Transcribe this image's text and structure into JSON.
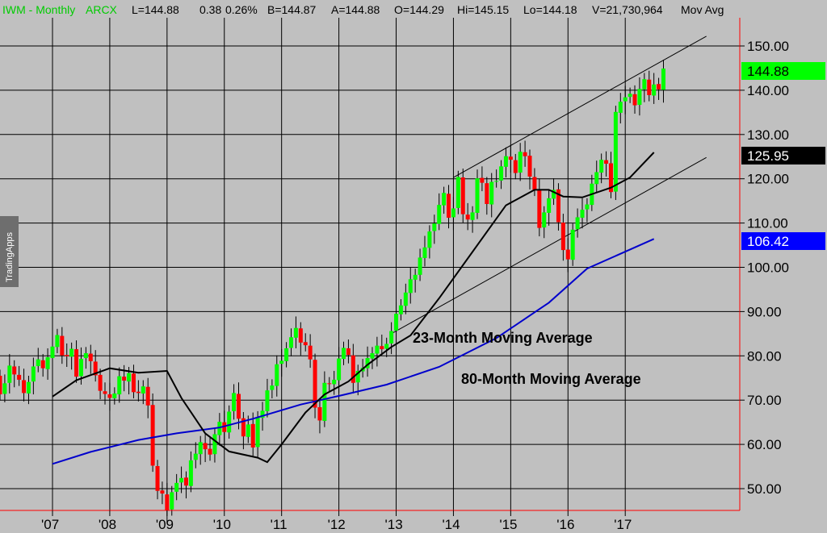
{
  "header": {
    "symbol": "IWM - Monthly",
    "exchange": "ARCX",
    "last": "L=144.88",
    "change": "0.38",
    "change_pct": "0.26%",
    "bid": "B=144.87",
    "ask": "A=144.88",
    "open": "O=144.29",
    "high": "Hi=145.15",
    "low": "Lo=144.18",
    "volume": "V=21,730,964",
    "study": "Mov Avg"
  },
  "watermark": "TradingApps",
  "colors": {
    "background": "#c0c0c0",
    "up": "#00ff00",
    "down": "#ff0000",
    "ma23": "#000000",
    "ma80": "#0000cc",
    "last_tag": "#00ff00",
    "grid": "#000000"
  },
  "chart_data": {
    "type": "candlestick",
    "symbol": "IWM",
    "period": "Monthly",
    "ylim": [
      45,
      156
    ],
    "y_ticks": [
      "150.00",
      "140.00",
      "130.00",
      "120.00",
      "110.00",
      "100.00",
      "90.00",
      "80.00",
      "70.00",
      "60.00",
      "50.00"
    ],
    "x_ticks": [
      "'07",
      "'08",
      "'09",
      "'10",
      "'11",
      "'12",
      "'13",
      "'14",
      "'15",
      "'16",
      "'17"
    ],
    "candles": [
      [
        75.5,
        71.3
      ],
      [
        71.4,
        73.8
      ],
      [
        73.9,
        77.8
      ],
      [
        77.6,
        75.8
      ],
      [
        75.7,
        74.6
      ],
      [
        74.5,
        71.6
      ],
      [
        71.5,
        74.1
      ],
      [
        74.2,
        77.6
      ],
      [
        77.7,
        79.2
      ],
      [
        79.0,
        77.2
      ],
      [
        77.0,
        79.7
      ],
      [
        79.5,
        82.1
      ],
      [
        82.0,
        84.7
      ],
      [
        84.5,
        80.1
      ],
      [
        80.2,
        79.9
      ],
      [
        79.8,
        81.6
      ],
      [
        81.5,
        75.3
      ],
      [
        75.4,
        79.3
      ],
      [
        79.5,
        80.6
      ],
      [
        80.5,
        78.8
      ],
      [
        78.7,
        75.6
      ],
      [
        75.7,
        72.1
      ],
      [
        72.0,
        71.4
      ],
      [
        71.3,
        70.5
      ],
      [
        70.4,
        71.5
      ],
      [
        71.3,
        75.4
      ],
      [
        75.3,
        74.4
      ],
      [
        74.2,
        76.1
      ],
      [
        76.0,
        71.8
      ],
      [
        71.9,
        71.6
      ],
      [
        71.5,
        73.1
      ],
      [
        73.0,
        68.8
      ],
      [
        68.9,
        55.2
      ],
      [
        55.1,
        49.5
      ],
      [
        49.6,
        48.9
      ],
      [
        48.7,
        45.1
      ],
      [
        45.3,
        49.2
      ],
      [
        49.3,
        51.3
      ],
      [
        51.4,
        52.4
      ],
      [
        52.5,
        50.7
      ],
      [
        50.6,
        56.4
      ],
      [
        56.5,
        57.9
      ],
      [
        57.8,
        60.5
      ],
      [
        60.3,
        58.9
      ],
      [
        59.0,
        57.7
      ],
      [
        57.8,
        62.3
      ],
      [
        62.1,
        65.1
      ],
      [
        65.0,
        62.8
      ],
      [
        62.7,
        67.4
      ],
      [
        67.5,
        71.6
      ],
      [
        71.4,
        65.8
      ],
      [
        65.9,
        61.8
      ],
      [
        61.7,
        64.5
      ],
      [
        64.6,
        59.3
      ],
      [
        59.4,
        66.1
      ],
      [
        66.0,
        67.6
      ],
      [
        67.5,
        72.2
      ],
      [
        72.3,
        73.3
      ],
      [
        73.2,
        78.1
      ],
      [
        78.2,
        78.9
      ],
      [
        78.8,
        81.7
      ],
      [
        81.8,
        84.2
      ],
      [
        84.1,
        86.3
      ],
      [
        86.2,
        83.0
      ],
      [
        83.1,
        82.4
      ],
      [
        82.3,
        79.2
      ],
      [
        79.1,
        68.3
      ],
      [
        68.4,
        65.4
      ],
      [
        65.3,
        73.9
      ],
      [
        73.8,
        73.7
      ],
      [
        73.6,
        74.6
      ],
      [
        74.5,
        79.4
      ],
      [
        79.3,
        81.8
      ],
      [
        81.7,
        80.2
      ],
      [
        80.1,
        73.9
      ],
      [
        74.0,
        76.6
      ],
      [
        76.5,
        77.3
      ],
      [
        77.2,
        79.5
      ],
      [
        79.4,
        80.6
      ],
      [
        80.5,
        82.3
      ],
      [
        82.2,
        81.5
      ],
      [
        81.6,
        82.7
      ],
      [
        82.8,
        85.6
      ],
      [
        85.7,
        89.5
      ],
      [
        89.4,
        91.4
      ],
      [
        91.3,
        94.3
      ],
      [
        94.2,
        97.3
      ],
      [
        97.2,
        98.3
      ],
      [
        98.3,
        102.2
      ],
      [
        102.1,
        104.5
      ],
      [
        104.4,
        108.1
      ],
      [
        108.2,
        109.9
      ],
      [
        109.8,
        114.1
      ],
      [
        114.0,
        116.8
      ],
      [
        116.6,
        111.2
      ],
      [
        111.3,
        113.3
      ],
      [
        113.4,
        120.4
      ],
      [
        120.3,
        112.0
      ],
      [
        111.9,
        110.8
      ],
      [
        110.7,
        112.4
      ],
      [
        112.3,
        120.1
      ],
      [
        120.2,
        119.1
      ],
      [
        119.0,
        114.3
      ],
      [
        114.2,
        119.3
      ],
      [
        119.4,
        119.5
      ],
      [
        119.6,
        122.8
      ],
      [
        122.7,
        125.1
      ],
      [
        125.0,
        124.3
      ],
      [
        124.2,
        121.3
      ],
      [
        121.4,
        126.1
      ],
      [
        126.0,
        125.1
      ],
      [
        125.2,
        120.5
      ],
      [
        120.4,
        117.5
      ],
      [
        117.4,
        108.9
      ],
      [
        109.0,
        112.4
      ],
      [
        112.3,
        115.6
      ],
      [
        115.5,
        117.5
      ],
      [
        117.6,
        110.2
      ],
      [
        110.1,
        103.9
      ],
      [
        104.0,
        101.8
      ],
      [
        101.7,
        108.5
      ],
      [
        108.6,
        111.3
      ],
      [
        111.2,
        113.0
      ],
      [
        113.1,
        114.2
      ],
      [
        114.1,
        118.9
      ],
      [
        118.8,
        121.5
      ],
      [
        121.4,
        124.3
      ],
      [
        124.2,
        123.4
      ],
      [
        123.5,
        117.0
      ],
      [
        117.1,
        135.1
      ],
      [
        134.9,
        137.4
      ],
      [
        137.5,
        138.4
      ],
      [
        138.5,
        139.2
      ],
      [
        139.1,
        136.6
      ],
      [
        136.7,
        140.3
      ],
      [
        140.2,
        142.5
      ],
      [
        142.4,
        138.9
      ],
      [
        138.8,
        141.3
      ],
      [
        141.4,
        140.2
      ],
      [
        140.1,
        144.9
      ]
    ],
    "ma23": [
      [
        70.8,
        "2007-01"
      ],
      [
        74.5,
        "2007-06"
      ],
      [
        77.2,
        "2008-01"
      ],
      [
        76.2,
        "2008-07"
      ],
      [
        76.6,
        "2009-01"
      ],
      [
        70.5,
        "2009-04"
      ],
      [
        62.5,
        "2009-09"
      ],
      [
        58.4,
        "2010-02"
      ],
      [
        57.0,
        "2010-08"
      ],
      [
        56.0,
        "2010-10"
      ],
      [
        60.0,
        "2011-01"
      ],
      [
        67.2,
        "2011-06"
      ],
      [
        71.3,
        "2011-10"
      ],
      [
        74.2,
        "2012-03"
      ],
      [
        78.0,
        "2012-07"
      ],
      [
        82.0,
        "2012-12"
      ],
      [
        84.6,
        "2013-04"
      ],
      [
        93.0,
        "2013-10"
      ],
      [
        102.0,
        "2014-04"
      ],
      [
        114.0,
        "2014-12"
      ],
      [
        117.5,
        "2015-06"
      ],
      [
        117.5,
        "2015-09"
      ],
      [
        116.0,
        "2015-12"
      ],
      [
        115.8,
        "2016-04"
      ],
      [
        118.0,
        "2016-10"
      ],
      [
        120.3,
        "2017-02"
      ],
      [
        125.95,
        "2017-07"
      ]
    ],
    "ma80": [
      [
        55.6,
        "2007-01"
      ],
      [
        58.3,
        "2007-09"
      ],
      [
        61.0,
        "2008-07"
      ],
      [
        62.5,
        "2009-03"
      ],
      [
        63.8,
        "2009-12"
      ],
      [
        65.8,
        "2010-07"
      ],
      [
        69.0,
        "2011-05"
      ],
      [
        71.2,
        "2012-02"
      ],
      [
        73.5,
        "2012-11"
      ],
      [
        77.5,
        "2013-10"
      ],
      [
        84.0,
        "2014-10"
      ],
      [
        92.0,
        "2015-09"
      ],
      [
        99.7,
        "2016-05"
      ],
      [
        106.42,
        "2017-07"
      ]
    ],
    "last_price": "144.88",
    "ma23_last": "125.95",
    "ma80_last": "106.42",
    "channel_upper": [
      [
        120.3,
        "2014-01"
      ],
      [
        152.2,
        "2018-06"
      ]
    ],
    "channel_lower": [
      [
        85.0,
        "2012-12"
      ],
      [
        124.8,
        "2018-06"
      ]
    ],
    "annotations": [
      "23-Month Moving Average",
      "80-Month Moving Average"
    ]
  }
}
